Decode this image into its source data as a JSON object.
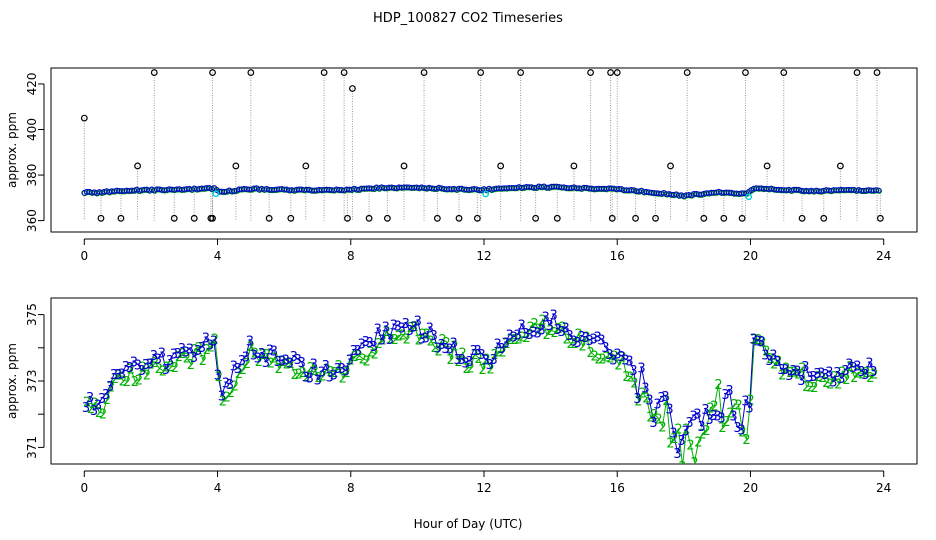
{
  "chart_data": [
    {
      "type": "scatter",
      "title": "HDP_100827  CO2 Timeseries",
      "xlabel": "",
      "ylabel": "approx. ppm",
      "xlim": [
        -1,
        25
      ],
      "ylim": [
        355,
        427
      ],
      "xticks": [
        0,
        4,
        8,
        12,
        16,
        20,
        24
      ],
      "yticks": [
        360,
        380,
        400,
        420
      ],
      "colors": {
        "calibration": "#000000",
        "channel2": "#00b000",
        "channel3": "#0000cc",
        "flag": "#00d0e0",
        "line": "#9a9a9a"
      },
      "baseline": [
        [
          0,
          372.5
        ],
        [
          0.5,
          372.3
        ],
        [
          1,
          373.2
        ],
        [
          2,
          373.5
        ],
        [
          3,
          373.8
        ],
        [
          3.9,
          374.2
        ],
        [
          4.1,
          372.6
        ],
        [
          5,
          374.0
        ],
        [
          6,
          373.6
        ],
        [
          7,
          373.3
        ],
        [
          7.8,
          373.5
        ],
        [
          8.2,
          373.8
        ],
        [
          9,
          374.5
        ],
        [
          10,
          374.6
        ],
        [
          11,
          374.0
        ],
        [
          12,
          373.6
        ],
        [
          13,
          374.6
        ],
        [
          14,
          374.8
        ],
        [
          15,
          374.3
        ],
        [
          16,
          373.8
        ],
        [
          17,
          372.6
        ],
        [
          18,
          371.0
        ],
        [
          19,
          372.4
        ],
        [
          19.9,
          371.8
        ],
        [
          20.1,
          374.3
        ],
        [
          21,
          373.5
        ],
        [
          22,
          373.1
        ],
        [
          23,
          373.4
        ],
        [
          23.8,
          373.3
        ]
      ],
      "calibration_cycles": [
        {
          "t": 0.0,
          "high": 405
        },
        {
          "t": 1.6,
          "high": 384
        },
        {
          "t": 2.1,
          "high": 425
        },
        {
          "t": 3.85,
          "high": 425
        },
        {
          "t": 4.55,
          "high": 384
        },
        {
          "t": 5.0,
          "high": 425
        },
        {
          "t": 6.65,
          "high": 384
        },
        {
          "t": 7.2,
          "high": 425
        },
        {
          "t": 7.8,
          "high": 425
        },
        {
          "t": 8.05,
          "high": 418
        },
        {
          "t": 9.6,
          "high": 384
        },
        {
          "t": 10.2,
          "high": 425
        },
        {
          "t": 11.9,
          "high": 425
        },
        {
          "t": 12.5,
          "high": 384
        },
        {
          "t": 13.1,
          "high": 425
        },
        {
          "t": 14.7,
          "high": 384
        },
        {
          "t": 15.2,
          "high": 425
        },
        {
          "t": 15.8,
          "high": 425
        },
        {
          "t": 16.0,
          "high": 428
        },
        {
          "t": 17.6,
          "high": 384
        },
        {
          "t": 18.1,
          "high": 425
        },
        {
          "t": 19.85,
          "high": 425
        },
        {
          "t": 20.5,
          "high": 384
        },
        {
          "t": 21.0,
          "high": 425
        },
        {
          "t": 22.7,
          "high": 384
        },
        {
          "t": 23.2,
          "high": 425
        },
        {
          "t": 23.8,
          "high": 425
        }
      ],
      "zero_drops": [
        0.5,
        1.1,
        2.7,
        3.3,
        3.8,
        3.85,
        5.55,
        6.2,
        7.9,
        8.55,
        9.1,
        10.6,
        11.25,
        11.8,
        13.55,
        14.2,
        15.85,
        16.55,
        17.15,
        18.6,
        19.2,
        19.75,
        21.55,
        22.2,
        23.9
      ]
    },
    {
      "type": "scatter",
      "title": "",
      "xlabel": "Hour of Day (UTC)",
      "ylabel": "approx. ppm",
      "xlim": [
        -1,
        25
      ],
      "ylim": [
        370.5,
        375.5
      ],
      "xticks": [
        0,
        4,
        8,
        12,
        16,
        20,
        24
      ],
      "yticks": [
        371,
        373,
        375
      ],
      "legend_symbols": [
        "2",
        "3"
      ],
      "marker_channel2": "2",
      "marker_channel3": "3"
    }
  ],
  "axis_tick_labels": {
    "x": [
      "0",
      "4",
      "8",
      "12",
      "16",
      "20",
      "24"
    ],
    "top_y": [
      "360",
      "380",
      "400",
      "420"
    ],
    "bottom_y": [
      "371",
      "373",
      "375"
    ]
  },
  "labels": {
    "title": "HDP_100827  CO2 Timeseries",
    "top_ylabel": "approx. ppm",
    "bottom_ylabel": "approx. ppm",
    "xlabel": "Hour of Day (UTC)"
  }
}
